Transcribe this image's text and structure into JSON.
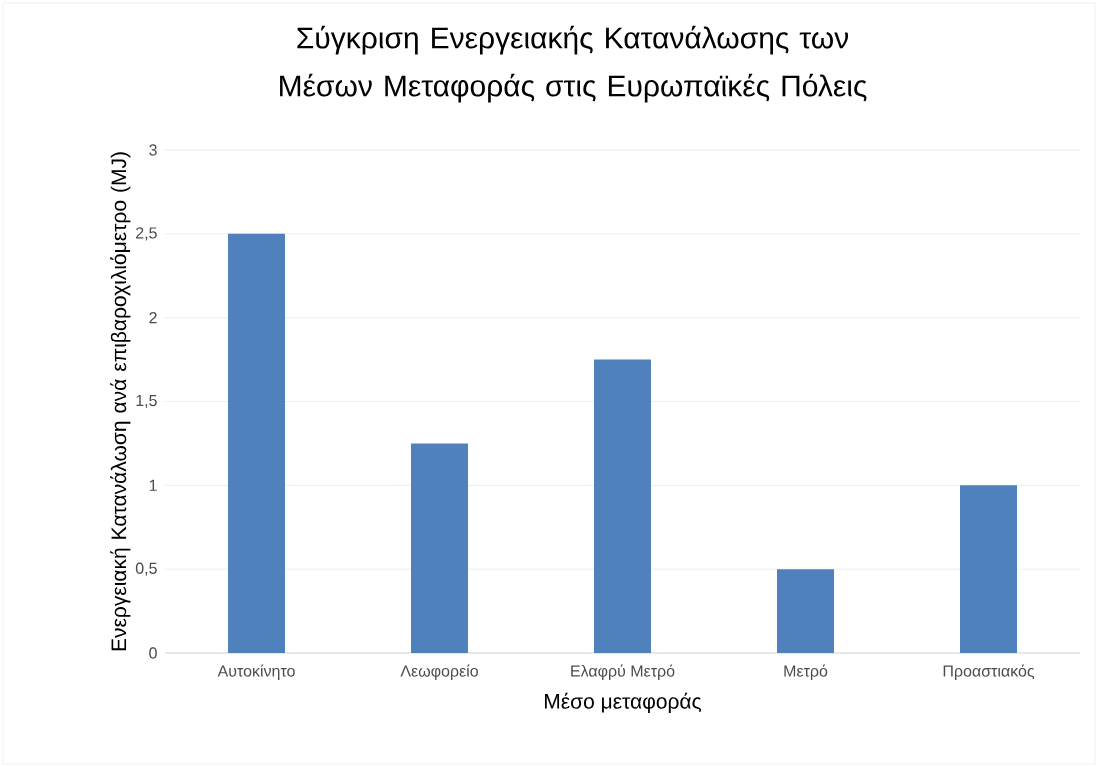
{
  "chart_data": {
    "type": "bar",
    "title": "Σύγκριση Ενεργειακής Κατανάλωσης των Μέσων Μεταφοράς στις Ευρωπαϊκές Πόλεις",
    "xlabel": "Μέσο μεταφοράς",
    "ylabel": "Ενεργειακή Κατανάλωση ανά επιβαροχιλιόμετρο (MJ)",
    "categories": [
      "Αυτοκίνητο",
      "Λεωφορείο",
      "Ελαφρύ Μετρό",
      "Μετρό",
      "Προαστιακός"
    ],
    "values": [
      2.5,
      1.25,
      1.75,
      0.5,
      1
    ],
    "color": "#4f81bd",
    "ylim": [
      0,
      3
    ],
    "yticks": [
      0,
      {
        "value": 0.5,
        "label": "0,5"
      },
      1,
      {
        "value": 1.5,
        "label": "1,5"
      },
      2,
      {
        "value": 2.5,
        "label": "2,5"
      },
      3
    ],
    "grid": "y"
  }
}
